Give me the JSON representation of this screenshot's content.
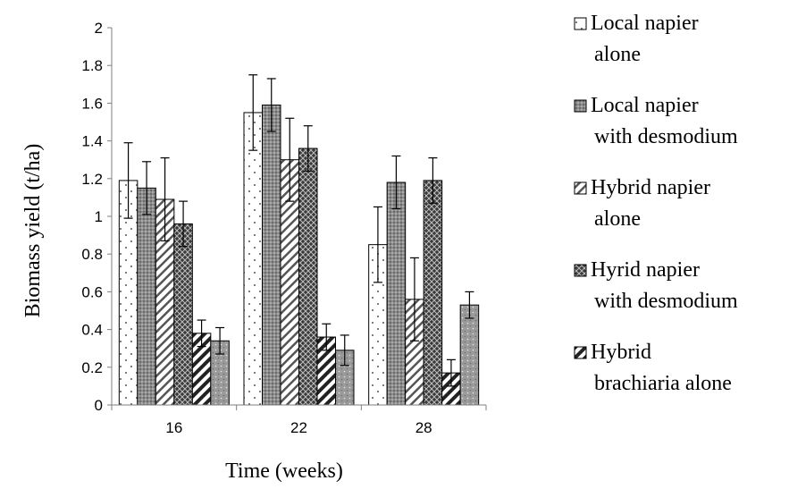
{
  "chart_data": {
    "type": "bar",
    "categories": [
      "16",
      "22",
      "28"
    ],
    "xlabel": "Time (weeks)",
    "ylabel": "Biomass yield (t/ha)",
    "ylim": [
      0,
      2
    ],
    "yticks": [
      "0",
      "0.2",
      "0.4",
      "0.6",
      "0.8",
      "1",
      "1.2",
      "1.4",
      "1.6",
      "1.8",
      "2"
    ],
    "grid": false,
    "legend_position": "right",
    "series": [
      {
        "name": "Local napier alone",
        "legend_lines": [
          "Local napier",
          "alone"
        ],
        "pattern": "dots",
        "values": [
          1.19,
          1.55,
          0.85
        ],
        "errors": [
          0.2,
          0.2,
          0.2
        ]
      },
      {
        "name": "Local napier with desmodium",
        "legend_lines": [
          "Local napier",
          "with desmodium"
        ],
        "pattern": "grid-gray",
        "values": [
          1.15,
          1.59,
          1.18
        ],
        "errors": [
          0.14,
          0.14,
          0.14
        ]
      },
      {
        "name": "Hybrid napier alone",
        "legend_lines": [
          "Hybrid napier",
          "alone"
        ],
        "pattern": "diag-light",
        "values": [
          1.09,
          1.3,
          0.56
        ],
        "errors": [
          0.22,
          0.22,
          0.22
        ]
      },
      {
        "name": "Hyrid napier with desmodium",
        "legend_lines": [
          "Hyrid napier",
          "with desmodium"
        ],
        "pattern": "cross-dark",
        "values": [
          0.96,
          1.36,
          1.19
        ],
        "errors": [
          0.12,
          0.12,
          0.12
        ]
      },
      {
        "name": "Hybrid brachiaria alone",
        "legend_lines": [
          "Hybrid",
          "brachiaria alone"
        ],
        "pattern": "diag-bold",
        "values": [
          0.38,
          0.36,
          0.17
        ],
        "errors": [
          0.07,
          0.07,
          0.07
        ]
      },
      {
        "name": "",
        "legend_lines": [],
        "pattern": "speckle",
        "values": [
          0.34,
          0.29,
          0.53
        ],
        "errors": [
          0.07,
          0.08,
          0.07
        ]
      }
    ]
  }
}
